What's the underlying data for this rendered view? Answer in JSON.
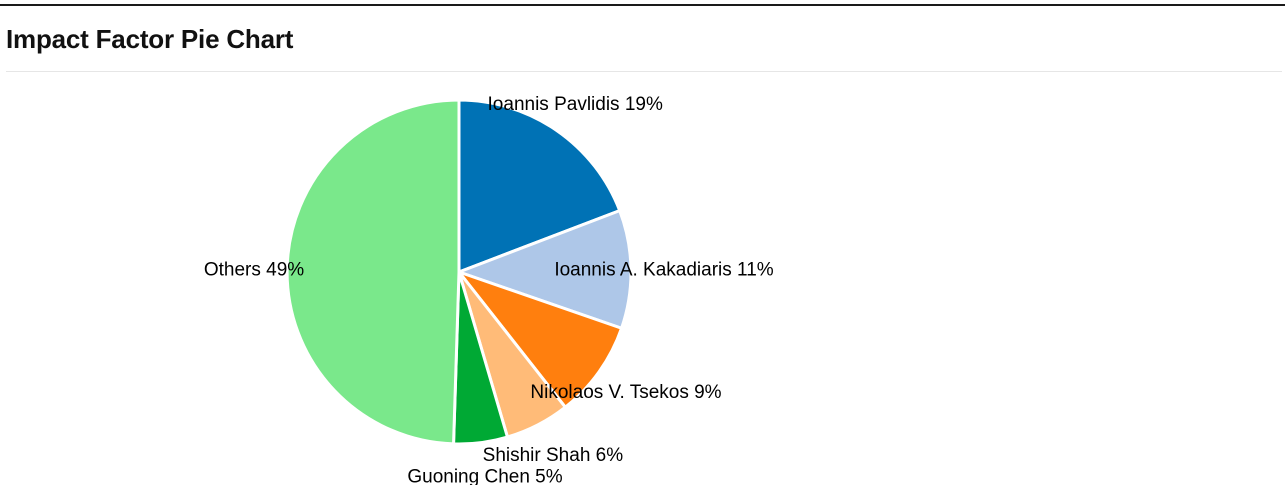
{
  "panel": {
    "title": "Impact Factor Pie Chart"
  },
  "chart_data": {
    "type": "pie",
    "title": "",
    "start": "top",
    "direction": "clockwise",
    "slices": [
      {
        "label": "Ioannis Pavlidis",
        "value": 19,
        "display": "Ioannis Pavlidis 19%",
        "color": "#0072b5"
      },
      {
        "label": "Ioannis A. Kakadiaris",
        "value": 11,
        "display": "Ioannis A. Kakadiaris 11%",
        "color": "#aec7e8"
      },
      {
        "label": "Nikolaos V. Tsekos",
        "value": 9,
        "display": "Nikolaos V. Tsekos 9%",
        "color": "#ff7f0e"
      },
      {
        "label": "Shishir Shah",
        "value": 6,
        "display": "Shishir Shah 6%",
        "color": "#ffbb78"
      },
      {
        "label": "Guoning Chen",
        "value": 5,
        "display": "Guoning Chen 5%",
        "color": "#00a934"
      },
      {
        "label": "Others",
        "value": 49,
        "display": "Others 49%",
        "color": "#7ae88b"
      }
    ]
  }
}
